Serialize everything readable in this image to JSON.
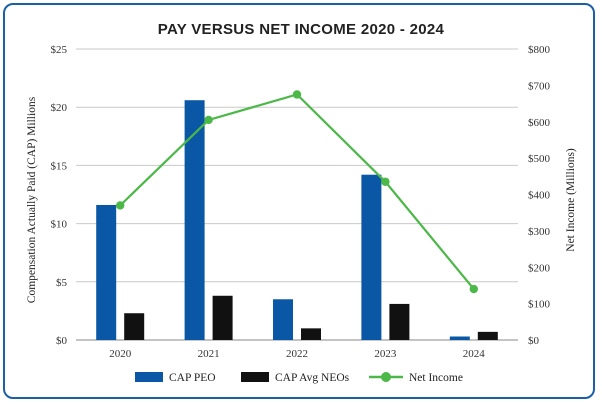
{
  "chart_data": {
    "type": "bar",
    "title": "PAY VERSUS NET INCOME 2020 - 2024",
    "categories": [
      "2020",
      "2021",
      "2022",
      "2023",
      "2024"
    ],
    "series": [
      {
        "name": "CAP PEO",
        "axis": "left",
        "kind": "bar",
        "color": "#0a57a6",
        "values": [
          11.6,
          20.6,
          3.5,
          14.2,
          0.3
        ]
      },
      {
        "name": "CAP Avg NEOs",
        "axis": "left",
        "kind": "bar",
        "color": "#111111",
        "values": [
          2.3,
          3.8,
          1.0,
          3.1,
          0.7
        ]
      },
      {
        "name": "Net Income",
        "axis": "right",
        "kind": "line",
        "color": "#4cb848",
        "values": [
          370,
          605,
          675,
          435,
          140
        ]
      }
    ],
    "ylabel": "Compensation Actually Paid (CAP) Millions",
    "y2label": "Net Income (Millions)",
    "ylim": [
      0,
      25
    ],
    "y2lim": [
      0,
      800
    ],
    "yticks": [
      "$0",
      "$5",
      "$10",
      "$15",
      "$20",
      "$25"
    ],
    "y2ticks": [
      "$0",
      "$100",
      "$200",
      "$300",
      "$400",
      "$500",
      "$600",
      "$700",
      "$800"
    ],
    "grid": true,
    "legend_position": "bottom"
  }
}
